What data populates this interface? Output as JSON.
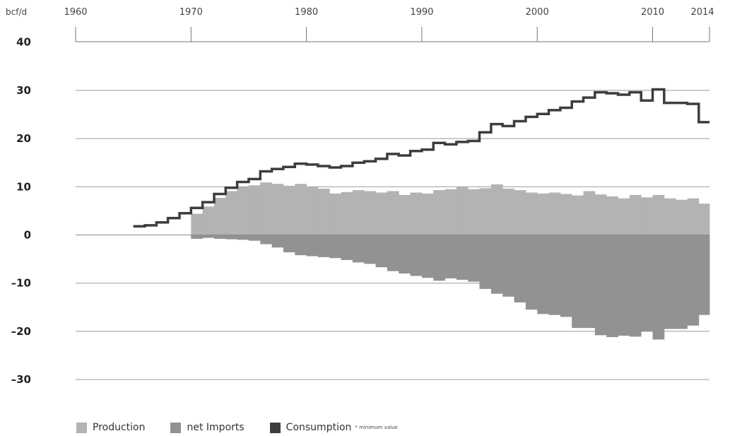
{
  "chart_data": {
    "type": "area",
    "unit": "bcf/d",
    "x_ticks": [
      "1960",
      "1970",
      "1980",
      "1990",
      "2000",
      "2010",
      "2014"
    ],
    "y_ticks": [
      "40",
      "30",
      "20",
      "10",
      "0",
      "–10",
      "–20",
      "–30"
    ],
    "xlim": [
      1960,
      2015
    ],
    "ylim": [
      -30,
      40
    ],
    "grid": true,
    "legend_position": "bottom-left",
    "colors": {
      "production": "#b3b3b3",
      "net_imports": "#929292",
      "consumption": "#3d3d3d"
    },
    "production": {
      "name": "Production",
      "years": [
        1970,
        1971,
        1972,
        1973,
        1974,
        1975,
        1976,
        1977,
        1978,
        1979,
        1980,
        1981,
        1982,
        1983,
        1984,
        1985,
        1986,
        1987,
        1988,
        1989,
        1990,
        1991,
        1992,
        1993,
        1994,
        1995,
        1996,
        1997,
        1998,
        1999,
        2000,
        2001,
        2002,
        2003,
        2004,
        2005,
        2006,
        2007,
        2008,
        2009,
        2010,
        2011,
        2012,
        2013,
        2014
      ],
      "values": [
        4.4,
        5.9,
        7.7,
        9.1,
        10.0,
        10.3,
        10.9,
        10.6,
        10.2,
        10.6,
        10.0,
        9.6,
        8.6,
        8.9,
        9.3,
        9.1,
        8.8,
        9.1,
        8.3,
        8.8,
        8.6,
        9.3,
        9.5,
        9.9,
        9.5,
        9.7,
        10.5,
        9.6,
        9.3,
        8.8,
        8.6,
        8.8,
        8.5,
        8.2,
        9.1,
        8.4,
        8.0,
        7.6,
        8.3,
        7.8,
        8.3,
        7.6,
        7.3,
        7.6,
        6.5
      ]
    },
    "net_imports": {
      "name": "net Imports",
      "years": [
        1970,
        1971,
        1972,
        1973,
        1974,
        1975,
        1976,
        1977,
        1978,
        1979,
        1980,
        1981,
        1982,
        1983,
        1984,
        1985,
        1986,
        1987,
        1988,
        1989,
        1990,
        1991,
        1992,
        1993,
        1994,
        1995,
        1996,
        1997,
        1998,
        1999,
        2000,
        2001,
        2002,
        2003,
        2004,
        2005,
        2006,
        2007,
        2008,
        2009,
        2010,
        2011,
        2012,
        2013,
        2014
      ],
      "values": [
        -0.8,
        -0.6,
        -0.8,
        -0.9,
        -1.0,
        -1.2,
        -1.9,
        -2.6,
        -3.6,
        -4.2,
        -4.4,
        -4.6,
        -4.8,
        -5.2,
        -5.7,
        -6.0,
        -6.7,
        -7.5,
        -8.0,
        -8.5,
        -8.9,
        -9.5,
        -9.0,
        -9.3,
        -9.7,
        -11.2,
        -12.2,
        -12.8,
        -14.0,
        -15.5,
        -16.4,
        -16.6,
        -17.0,
        -19.3,
        -19.3,
        -20.8,
        -21.2,
        -20.9,
        -21.1,
        -20.0,
        -21.7,
        -19.5,
        -19.5,
        -18.8,
        -16.6
      ]
    },
    "consumption": {
      "name": "Consumption",
      "note": "* minimum value",
      "years": [
        1965,
        1966,
        1967,
        1968,
        1969,
        1970,
        1971,
        1972,
        1973,
        1974,
        1975,
        1976,
        1977,
        1978,
        1979,
        1980,
        1981,
        1982,
        1983,
        1984,
        1985,
        1986,
        1987,
        1988,
        1989,
        1990,
        1991,
        1992,
        1993,
        1994,
        1995,
        1996,
        1997,
        1998,
        1999,
        2000,
        2001,
        2002,
        2003,
        2004,
        2005,
        2006,
        2007,
        2008,
        2009,
        2010,
        2011,
        2012,
        2013,
        2014
      ],
      "values": [
        1.8,
        2.0,
        2.6,
        3.5,
        4.5,
        5.6,
        6.8,
        8.5,
        9.8,
        11.0,
        11.6,
        13.2,
        13.7,
        14.1,
        14.8,
        14.6,
        14.3,
        14.0,
        14.3,
        15.0,
        15.3,
        15.8,
        16.8,
        16.5,
        17.4,
        17.7,
        19.1,
        18.8,
        19.3,
        19.5,
        21.3,
        23.0,
        22.6,
        23.6,
        24.5,
        25.1,
        25.9,
        26.4,
        27.7,
        28.5,
        29.6,
        29.4,
        29.1,
        29.6,
        27.9,
        30.2,
        27.4,
        27.4,
        27.2,
        23.4
      ]
    }
  },
  "legend": {
    "production_label": "Production",
    "net_imports_label": "net Imports",
    "consumption_label": "Consumption",
    "note": "* minimum value"
  }
}
